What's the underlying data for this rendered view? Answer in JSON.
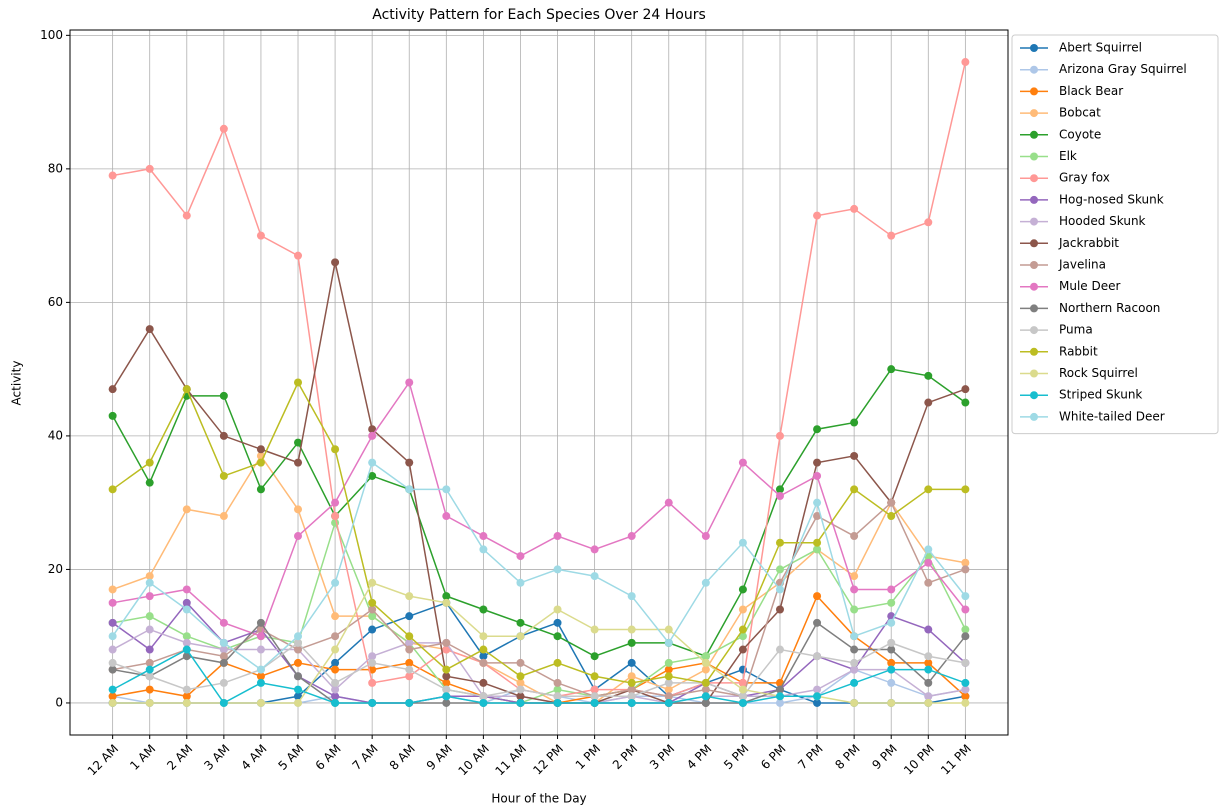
{
  "chart_data": {
    "type": "line",
    "title": "Activity Pattern for Each Species Over 24 Hours",
    "x_label": "Hour of the Day",
    "y_label": "Activity",
    "categories": [
      "12 AM",
      "1 AM",
      "2 AM",
      "3 AM",
      "4 AM",
      "5 AM",
      "6 AM",
      "7 AM",
      "8 AM",
      "9 AM",
      "10 AM",
      "11 AM",
      "12 PM",
      "1 PM",
      "2 PM",
      "3 PM",
      "4 PM",
      "5 PM",
      "6 PM",
      "7 PM",
      "8 PM",
      "9 PM",
      "10 PM",
      "11 PM"
    ],
    "ylim": [
      -4.8,
      100.8
    ],
    "yticks": [
      0,
      20,
      40,
      60,
      80,
      100
    ],
    "grid": true,
    "legend": "right",
    "series": [
      {
        "name": "Abert Squirrel",
        "color": "#1f77b4",
        "values": [
          0,
          0,
          0,
          0,
          0,
          1,
          6,
          11,
          13,
          15,
          7,
          10,
          12,
          2,
          6,
          1,
          3,
          5,
          2,
          0,
          0,
          0,
          0,
          1
        ]
      },
      {
        "name": "Arizona Gray Squirrel",
        "color": "#aec7e8",
        "values": [
          1,
          0,
          0,
          0,
          0,
          0,
          1,
          0,
          0,
          1,
          0,
          2,
          1,
          0,
          1,
          1,
          0,
          0,
          0,
          1,
          5,
          3,
          1,
          2
        ]
      },
      {
        "name": "Black Bear",
        "color": "#ff7f0e",
        "values": [
          1,
          2,
          1,
          6,
          4,
          6,
          5,
          5,
          6,
          3,
          1,
          0,
          0,
          1,
          2,
          5,
          6,
          3,
          3,
          16,
          10,
          6,
          6,
          1
        ]
      },
      {
        "name": "Bobcat",
        "color": "#ffbb78",
        "values": [
          17,
          19,
          29,
          28,
          37,
          29,
          13,
          13,
          9,
          8,
          6,
          3,
          0,
          0,
          4,
          2,
          5,
          14,
          18,
          23,
          19,
          30,
          22,
          21
        ]
      },
      {
        "name": "Coyote",
        "color": "#2ca02c",
        "values": [
          43,
          33,
          46,
          46,
          32,
          39,
          28,
          34,
          32,
          16,
          14,
          12,
          10,
          7,
          9,
          9,
          7,
          17,
          32,
          41,
          42,
          50,
          49,
          45
        ]
      },
      {
        "name": "Elk",
        "color": "#98df8a",
        "values": [
          12,
          13,
          10,
          8,
          10,
          9,
          27,
          13,
          9,
          2,
          1,
          0,
          2,
          1,
          2,
          6,
          7,
          10,
          20,
          23,
          14,
          15,
          22,
          11
        ]
      },
      {
        "name": "Gray fox",
        "color": "#ff9896",
        "values": [
          79,
          80,
          73,
          86,
          70,
          67,
          28,
          3,
          4,
          8,
          6,
          2,
          1,
          2,
          2,
          1,
          3,
          3,
          40,
          73,
          74,
          70,
          72,
          96
        ]
      },
      {
        "name": "Hog-nosed Skunk",
        "color": "#9467bd",
        "values": [
          12,
          8,
          15,
          9,
          11,
          4,
          1,
          0,
          0,
          1,
          1,
          0,
          0,
          0,
          0,
          0,
          3,
          1,
          2,
          7,
          5,
          13,
          11,
          6
        ]
      },
      {
        "name": "Hooded Skunk",
        "color": "#c5b0d5",
        "values": [
          8,
          11,
          9,
          8,
          8,
          8,
          2,
          7,
          9,
          9,
          1,
          1,
          0,
          0,
          1,
          0,
          1,
          1,
          1,
          2,
          5,
          5,
          1,
          2
        ]
      },
      {
        "name": "Jackrabbit",
        "color": "#8c564b",
        "values": [
          47,
          56,
          47,
          40,
          38,
          36,
          66,
          41,
          36,
          4,
          3,
          1,
          0,
          0,
          2,
          0,
          0,
          8,
          14,
          36,
          37,
          30,
          45,
          47
        ]
      },
      {
        "name": "Javelina",
        "color": "#c49c94",
        "values": [
          5,
          6,
          8,
          7,
          11,
          8,
          10,
          14,
          8,
          9,
          6,
          6,
          3,
          1,
          2,
          1,
          2,
          1,
          18,
          28,
          25,
          30,
          18,
          20
        ]
      },
      {
        "name": "Mule Deer",
        "color": "#e377c2",
        "values": [
          15,
          16,
          17,
          12,
          10,
          25,
          30,
          40,
          48,
          28,
          25,
          22,
          25,
          23,
          25,
          30,
          25,
          36,
          31,
          34,
          17,
          17,
          21,
          14
        ]
      },
      {
        "name": "Northern Racoon",
        "color": "#7f7f7f",
        "values": [
          5,
          4,
          7,
          6,
          12,
          4,
          0,
          0,
          0,
          0,
          0,
          0,
          0,
          0,
          0,
          0,
          0,
          0,
          2,
          12,
          8,
          8,
          3,
          10
        ]
      },
      {
        "name": "Puma",
        "color": "#c7c7c7",
        "values": [
          6,
          4,
          2,
          3,
          5,
          9,
          3,
          6,
          5,
          2,
          1,
          2,
          1,
          1,
          1,
          3,
          3,
          1,
          8,
          7,
          6,
          9,
          7,
          6
        ]
      },
      {
        "name": "Rabbit",
        "color": "#bcbd22",
        "values": [
          32,
          36,
          47,
          34,
          36,
          48,
          38,
          15,
          10,
          5,
          8,
          4,
          6,
          4,
          3,
          4,
          3,
          11,
          24,
          24,
          32,
          28,
          32,
          32
        ]
      },
      {
        "name": "Rock Squirrel",
        "color": "#dbdb8d",
        "values": [
          0,
          0,
          0,
          0,
          0,
          0,
          8,
          18,
          16,
          15,
          10,
          10,
          14,
          11,
          11,
          11,
          6,
          2,
          1,
          1,
          0,
          0,
          0,
          0
        ]
      },
      {
        "name": "Striped Skunk",
        "color": "#17becf",
        "values": [
          2,
          5,
          8,
          0,
          3,
          2,
          0,
          0,
          0,
          1,
          0,
          0,
          0,
          0,
          0,
          0,
          1,
          0,
          1,
          1,
          3,
          5,
          5,
          3
        ]
      },
      {
        "name": "White-tailed Deer",
        "color": "#9edae5",
        "values": [
          10,
          18,
          14,
          9,
          5,
          10,
          18,
          36,
          32,
          32,
          23,
          18,
          20,
          19,
          16,
          9,
          18,
          24,
          17,
          30,
          10,
          12,
          23,
          16
        ]
      }
    ]
  }
}
